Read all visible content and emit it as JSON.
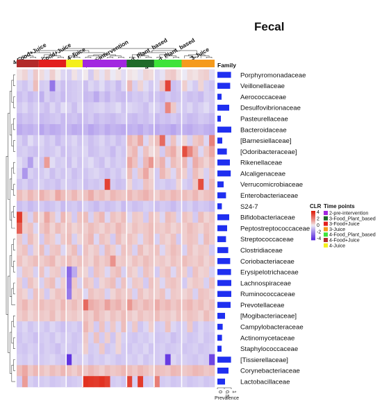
{
  "chart_data": {
    "type": "heatmap",
    "title": "Fecal",
    "column_groups": [
      "4-Food+Juice",
      "3-Food+Juice",
      "4-Juice",
      "2-pre-intervention",
      "3-Food_Plant_based",
      "4-Food_Plant_based",
      "3-Juice"
    ],
    "row_annotation_header": "Family",
    "prevalence_axis": {
      "label": "Prevalence",
      "ticks": [
        "0",
        "0.5",
        "1"
      ]
    },
    "rows": [
      {
        "family": "Porphyromonadaceae",
        "prevalence": 0.98
      },
      {
        "family": "Veillonellaceae",
        "prevalence": 0.92
      },
      {
        "family": "Aerococcaceae",
        "prevalence": 0.3
      },
      {
        "family": "Desulfovibrionaceae",
        "prevalence": 0.85
      },
      {
        "family": "Pasteurellaceae",
        "prevalence": 0.25
      },
      {
        "family": "Bacteroidaceae",
        "prevalence": 1.0
      },
      {
        "family": "[Barnesiellaceae]",
        "prevalence": 0.35
      },
      {
        "family": "[Odoribacteraceae]",
        "prevalence": 0.68
      },
      {
        "family": "Rikenellaceae",
        "prevalence": 0.9
      },
      {
        "family": "Alcaligenaceae",
        "prevalence": 0.96
      },
      {
        "family": "Verrucomicrobiaceae",
        "prevalence": 0.45
      },
      {
        "family": "Enterobacteriaceae",
        "prevalence": 0.62
      },
      {
        "family": "S24-7",
        "prevalence": 0.32
      },
      {
        "family": "Bifidobacteriaceae",
        "prevalence": 0.85
      },
      {
        "family": "Peptostreptococcaceae",
        "prevalence": 0.7
      },
      {
        "family": "Streptococcaceae",
        "prevalence": 0.62
      },
      {
        "family": "Clostridiaceae",
        "prevalence": 0.78
      },
      {
        "family": "Coriobacteriaceae",
        "prevalence": 0.92
      },
      {
        "family": "Erysipelotrichaceae",
        "prevalence": 0.98
      },
      {
        "family": "Lachnospiraceae",
        "prevalence": 1.0
      },
      {
        "family": "Ruminococcaceae",
        "prevalence": 1.0
      },
      {
        "family": "Prevotellaceae",
        "prevalence": 0.95
      },
      {
        "family": "[Mogibacteriaceae]",
        "prevalence": 0.55
      },
      {
        "family": "Campylobacteraceae",
        "prevalence": 0.38
      },
      {
        "family": "Actinomycetaceae",
        "prevalence": 0.33
      },
      {
        "family": "Staphylococcaceae",
        "prevalence": 0.3
      },
      {
        "family": "[Tissierellaceae]",
        "prevalence": 0.98
      },
      {
        "family": "Corynebacteriaceae",
        "prevalence": 0.8
      },
      {
        "family": "Lactobacillaceae",
        "prevalence": 0.55
      }
    ],
    "color_scale": {
      "label": "CLR",
      "ticks": [
        4,
        2,
        0,
        -2,
        -4
      ],
      "low": "#5b2be0",
      "mid": "#f2f2f6",
      "high": "#e0200e"
    },
    "time_points_legend": {
      "title": "Time points",
      "entries": [
        {
          "label": "2-pre-intervention",
          "color": "#a227e0"
        },
        {
          "label": "3-Food_Plant_based",
          "color": "#1f6b2a"
        },
        {
          "label": "3-Food+Juice",
          "color": "#e21e1e"
        },
        {
          "label": "3-Juice",
          "color": "#f59a1c"
        },
        {
          "label": "4-Food_Plant_based",
          "color": "#3ee33a"
        },
        {
          "label": "4-Food+Juice",
          "color": "#b22a2a"
        },
        {
          "label": "4-Juice",
          "color": "#f4ef1c"
        }
      ]
    },
    "column_group_colors": [
      "#b22a2a",
      "#e21e1e",
      "#f4ef1c",
      "#a227e0",
      "#1f6b2a",
      "#3ee33a",
      "#f59a1c"
    ],
    "column_group_sizes": [
      4,
      5,
      3,
      8,
      5,
      5,
      6
    ],
    "values": [
      [
        0.2,
        0.4,
        -0.3,
        0.6,
        0.3,
        -0.2,
        0.5,
        0.1,
        -0.4,
        -0.5,
        0.2,
        -0.3,
        0.1,
        -0.6,
        0.3,
        -0.2,
        0.4,
        -0.1,
        0.2,
        -0.3,
        0.2,
        0.1,
        -0.2,
        0.4,
        0.3,
        -0.4,
        -0.2,
        0.5,
        0.6,
        0.2,
        -0.1,
        0.3,
        0.2,
        0.4,
        0.5,
        -0.3
      ],
      [
        -0.5,
        -0.7,
        -0.4,
        0.8,
        -0.6,
        -0.5,
        -2.3,
        -0.5,
        -0.8,
        -0.7,
        -0.6,
        -0.5,
        -0.8,
        -0.4,
        -0.6,
        -0.3,
        -0.7,
        -0.5,
        -0.9,
        -0.4,
        0.9,
        -0.5,
        0.4,
        -0.3,
        -0.6,
        -0.4,
        0.7,
        3.2,
        -0.8,
        -0.6,
        0.5,
        -0.3,
        -0.6,
        0.4,
        -0.5,
        -0.7
      ],
      [
        -0.8,
        -0.6,
        -0.9,
        -0.7,
        -1.1,
        -0.5,
        -0.8,
        -0.6,
        -0.9,
        -0.7,
        -0.6,
        -0.5,
        -0.9,
        -0.8,
        -1.2,
        -0.7,
        -1.0,
        -0.6,
        -0.8,
        -0.9,
        -0.8,
        -0.6,
        -0.7,
        -0.5,
        -0.8,
        -0.7,
        -0.9,
        -0.6,
        -0.8,
        -0.7,
        -0.6,
        -0.8,
        -0.7,
        -0.9,
        -0.5,
        -0.6
      ],
      [
        -0.6,
        -0.4,
        -0.7,
        -0.5,
        -0.6,
        -0.8,
        -0.4,
        -0.7,
        -0.3,
        -0.5,
        -0.8,
        -0.4,
        -0.7,
        -0.6,
        -0.5,
        -0.4,
        -0.6,
        -0.5,
        -0.3,
        -0.7,
        -0.4,
        -0.5,
        -0.6,
        -0.8,
        -0.4,
        -0.5,
        -0.7,
        1.8,
        0.6,
        -0.5,
        -0.6,
        -0.4,
        -0.7,
        -0.5,
        -0.3,
        -0.6
      ],
      [
        -0.9,
        -0.7,
        -0.8,
        -0.6,
        -0.9,
        -0.8,
        -0.7,
        -0.6,
        -0.9,
        -0.8,
        -0.7,
        -0.9,
        -0.8,
        -0.6,
        -0.9,
        -0.7,
        -0.8,
        -0.9,
        -0.7,
        -0.6,
        -0.8,
        -0.9,
        -0.7,
        -0.8,
        -0.6,
        -0.9,
        -0.7,
        -0.8,
        -0.6,
        -0.8,
        -0.7,
        -0.9,
        -0.8,
        -0.6,
        -0.7,
        -0.9
      ],
      [
        -1.2,
        -1.0,
        -1.1,
        -0.9,
        -1.3,
        -1.0,
        -1.2,
        -1.1,
        -0.9,
        -1.0,
        -1.2,
        -1.1,
        -1.0,
        -1.3,
        -1.1,
        -0.9,
        -1.2,
        -1.0,
        -1.1,
        -1.2,
        -1.1,
        -1.0,
        -1.2,
        -0.9,
        -1.1,
        -1.2,
        -1.0,
        -1.1,
        -1.3,
        -1.0,
        -1.1,
        -1.2,
        -1.0,
        -0.9,
        -1.1,
        -1.2
      ],
      [
        -0.5,
        -0.8,
        -0.3,
        -0.6,
        -0.4,
        -0.7,
        -0.5,
        -0.9,
        -0.6,
        -0.6,
        -0.4,
        -0.7,
        -0.5,
        -0.8,
        -0.6,
        -0.4,
        -0.7,
        -0.5,
        -0.8,
        -0.6,
        0.9,
        0.6,
        1.2,
        -0.4,
        0.5,
        0.8,
        2.4,
        -0.5,
        0.7,
        -0.3,
        0.4,
        -0.5,
        0.6,
        0.8,
        -0.4,
        1.9
      ],
      [
        -0.6,
        -0.5,
        -0.7,
        -0.8,
        -0.5,
        -0.7,
        -0.6,
        -0.4,
        -0.8,
        -0.7,
        -0.5,
        -0.6,
        -0.4,
        -0.8,
        -0.7,
        -0.5,
        -0.6,
        -0.9,
        -0.5,
        -0.7,
        0.6,
        0.9,
        -0.4,
        0.7,
        0.3,
        0.5,
        -0.6,
        0.8,
        1.1,
        0.4,
        3.0,
        1.8,
        0.9,
        -0.4,
        0.6,
        1.2
      ],
      [
        -0.3,
        -0.6,
        -1.4,
        -0.4,
        -0.7,
        1.4,
        -0.3,
        -0.6,
        -0.5,
        -0.8,
        -0.4,
        -0.7,
        -0.5,
        -0.3,
        -0.6,
        -0.8,
        -0.4,
        -0.7,
        -0.5,
        -0.6,
        1.2,
        0.7,
        -0.5,
        0.9,
        1.5,
        0.6,
        1.0,
        -0.4,
        0.8,
        0.5,
        0.9,
        -0.5,
        1.1,
        0.7,
        0.4,
        0.8
      ],
      [
        -0.4,
        -1.6,
        -0.5,
        -0.7,
        -0.6,
        -0.4,
        -0.8,
        -0.5,
        -0.7,
        -0.5,
        -0.8,
        -0.6,
        -0.7,
        -0.5,
        -0.4,
        -0.6,
        -0.8,
        -0.5,
        -0.7,
        -0.4,
        0.8,
        -0.5,
        0.6,
        1.2,
        0.4,
        -0.6,
        0.9,
        0.5,
        -0.4,
        0.7,
        0.5,
        -0.6,
        0.8,
        0.4,
        -0.5,
        0.6
      ],
      [
        -0.7,
        -0.5,
        -0.8,
        -0.6,
        -0.5,
        -0.7,
        -0.6,
        -0.8,
        -0.5,
        -0.6,
        -0.7,
        -0.5,
        -0.8,
        -0.6,
        -0.7,
        -0.5,
        3.2,
        -0.6,
        -0.8,
        -0.7,
        0.4,
        -0.6,
        -0.5,
        0.7,
        0.5,
        -0.6,
        -0.5,
        -0.7,
        -0.6,
        0.4,
        -0.5,
        -0.7,
        0.6,
        3.0,
        -0.5,
        0.9
      ],
      [
        0.8,
        0.5,
        0.9,
        0.6,
        1.0,
        0.7,
        0.5,
        1.2,
        0.8,
        0.6,
        0.9,
        0.5,
        0.7,
        1.1,
        0.6,
        0.8,
        0.5,
        0.9,
        0.7,
        0.6,
        0.9,
        0.6,
        0.8,
        1.0,
        0.7,
        0.5,
        0.8,
        0.6,
        0.9,
        0.7,
        0.8,
        0.6,
        0.9,
        0.5,
        0.7,
        0.8
      ],
      [
        -0.8,
        -0.6,
        -0.9,
        -0.7,
        -0.6,
        -0.8,
        -0.7,
        -0.5,
        -0.9,
        -0.7,
        -0.6,
        -0.8,
        -0.5,
        -0.7,
        -0.9,
        -0.6,
        -0.8,
        -0.7,
        -0.5,
        -0.9,
        -0.6,
        -0.8,
        -0.7,
        -0.5,
        -0.6,
        -0.8,
        -0.6,
        -0.7,
        -0.9,
        -0.6,
        -0.7,
        -0.5,
        -0.8,
        -0.6,
        -0.7,
        -0.9
      ],
      [
        3.4,
        0.6,
        -0.5,
        0.8,
        0.4,
        1.2,
        0.6,
        -0.4,
        0.9,
        0.5,
        -0.6,
        0.7,
        0.8,
        -0.5,
        0.6,
        0.9,
        -0.4,
        0.7,
        0.5,
        0.8,
        -0.4,
        0.6,
        0.5,
        -0.6,
        0.7,
        0.5,
        -0.4,
        0.8,
        0.6,
        -0.5,
        0.7,
        0.5,
        -0.6,
        0.8,
        0.4,
        0.6
      ],
      [
        2.6,
        0.5,
        0.7,
        -0.4,
        0.6,
        0.9,
        0.4,
        0.8,
        0.5,
        0.7,
        0.4,
        0.6,
        0.5,
        0.8,
        0.6,
        0.4,
        0.7,
        0.5,
        0.9,
        0.6,
        0.4,
        0.7,
        0.5,
        0.6,
        0.8,
        0.6,
        0.5,
        0.7,
        0.4,
        0.6,
        0.5,
        0.8,
        0.6,
        0.4,
        0.7,
        0.5
      ],
      [
        0.6,
        -0.5,
        0.8,
        0.4,
        -0.6,
        0.7,
        0.5,
        -0.4,
        0.6,
        0.8,
        -0.5,
        0.4,
        0.6,
        0.9,
        -0.4,
        0.7,
        0.5,
        -0.6,
        0.8,
        0.4,
        0.7,
        0.5,
        -0.4,
        0.6,
        0.8,
        -0.5,
        0.6,
        0.4,
        0.7,
        -0.6,
        0.5,
        0.7,
        0.6,
        -0.4,
        0.8,
        0.5
      ],
      [
        0.5,
        0.7,
        -0.6,
        0.4,
        0.8,
        -0.5,
        0.6,
        0.7,
        -0.4,
        0.5,
        0.8,
        -0.6,
        0.7,
        0.4,
        0.6,
        -0.5,
        0.8,
        0.5,
        -0.4,
        0.7,
        0.6,
        -0.5,
        0.8,
        0.4,
        0.6,
        0.7,
        -0.4,
        0.5,
        0.8,
        0.6,
        -0.5,
        0.7,
        0.4,
        0.6,
        0.5,
        -0.6
      ],
      [
        0.7,
        0.4,
        0.6,
        0.8,
        0.5,
        0.7,
        0.9,
        0.4,
        0.6,
        0.8,
        0.5,
        0.7,
        0.6,
        0.4,
        0.8,
        0.5,
        0.7,
        1.6,
        0.5,
        0.6,
        0.4,
        0.7,
        0.5,
        0.8,
        0.6,
        0.5,
        0.6,
        0.4,
        0.7,
        0.5,
        0.8,
        0.6,
        0.5,
        0.7,
        0.4,
        0.6
      ],
      [
        -0.4,
        0.6,
        0.5,
        -0.5,
        0.7,
        -0.4,
        0.5,
        0.6,
        -0.6,
        -2.6,
        -1.2,
        0.5,
        0.4,
        -0.6,
        0.7,
        0.5,
        -0.4,
        0.6,
        0.8,
        -0.5,
        0.6,
        0.4,
        -0.5,
        0.7,
        0.5,
        -0.6,
        0.5,
        0.7,
        -0.4,
        0.6,
        0.5,
        -0.6,
        0.7,
        0.4,
        0.5,
        -0.5
      ],
      [
        0.5,
        -0.6,
        0.7,
        0.4,
        -0.5,
        0.6,
        0.8,
        -0.4,
        0.5,
        -2.4,
        0.6,
        -0.5,
        0.7,
        0.5,
        -0.6,
        0.4,
        0.6,
        0.8,
        -0.5,
        0.7,
        -0.4,
        0.6,
        0.5,
        -0.6,
        0.7,
        0.5,
        -0.4,
        0.6,
        0.7,
        0.5,
        -0.6,
        0.4,
        0.6,
        0.5,
        -0.5,
        0.7
      ],
      [
        0.6,
        0.4,
        -0.5,
        0.7,
        0.5,
        -0.6,
        0.4,
        0.7,
        0.6,
        -2.2,
        0.5,
        0.6,
        -0.4,
        0.7,
        0.5,
        0.6,
        -0.5,
        0.4,
        0.7,
        0.5,
        0.6,
        -0.5,
        0.7,
        0.4,
        0.6,
        0.5,
        0.7,
        -0.4,
        0.6,
        0.5,
        0.4,
        0.6,
        -0.5,
        0.7,
        0.6,
        0.4
      ],
      [
        0.6,
        0.9,
        0.5,
        0.7,
        0.8,
        0.6,
        0.7,
        0.5,
        0.9,
        0.6,
        0.8,
        0.5,
        2.4,
        1.1,
        0.9,
        0.7,
        1.3,
        0.8,
        1.0,
        0.6,
        1.5,
        0.8,
        0.6,
        0.9,
        0.7,
        1.1,
        0.7,
        0.9,
        0.6,
        0.8,
        0.7,
        0.9,
        0.6,
        0.8,
        0.5,
        0.7
      ],
      [
        0.5,
        0.7,
        0.4,
        0.6,
        0.6,
        0.5,
        0.8,
        0.4,
        0.7,
        0.5,
        0.6,
        0.4,
        0.7,
        0.5,
        0.9,
        0.6,
        0.4,
        0.7,
        0.5,
        0.8,
        0.6,
        0.4,
        0.7,
        0.5,
        0.6,
        0.8,
        0.5,
        0.6,
        0.4,
        0.7,
        0.5,
        0.7,
        0.6,
        0.4,
        0.8,
        0.5
      ],
      [
        -0.6,
        -0.4,
        -0.7,
        -0.5,
        -0.5,
        -0.7,
        -0.4,
        -0.6,
        -0.8,
        -0.6,
        -0.5,
        -0.7,
        0.9,
        0.5,
        -0.6,
        0.7,
        -0.5,
        0.6,
        -0.4,
        0.8,
        -0.5,
        0.6,
        -0.7,
        -0.4,
        0.5,
        -0.6,
        -0.5,
        0.7,
        -0.4,
        -0.6,
        -0.5,
        0.6,
        -0.7,
        -0.4,
        -0.6,
        -0.5
      ],
      [
        -0.7,
        -0.5,
        -0.6,
        -0.8,
        -0.6,
        -0.5,
        -0.7,
        -0.4,
        -0.6,
        -0.5,
        -0.7,
        -0.6,
        0.6,
        -0.5,
        0.7,
        -0.6,
        0.5,
        -0.7,
        0.4,
        -0.5,
        -0.6,
        -0.7,
        -0.5,
        -0.6,
        -0.4,
        -0.7,
        -0.6,
        -0.5,
        -0.8,
        -0.6,
        -0.5,
        -0.7,
        -0.6,
        -0.4,
        -0.7,
        -0.6
      ],
      [
        -0.6,
        -0.7,
        -0.5,
        -0.6,
        -0.7,
        -0.5,
        -0.6,
        -0.8,
        -0.5,
        -0.6,
        -0.7,
        -0.5,
        0.5,
        -0.6,
        -0.5,
        0.6,
        -0.7,
        -0.5,
        0.4,
        -0.6,
        -0.7,
        -0.5,
        -0.6,
        -0.4,
        -0.7,
        -0.6,
        -0.5,
        -0.7,
        -0.6,
        -0.5,
        -0.7,
        -0.6,
        -0.5,
        -0.7,
        -0.6,
        -0.5
      ],
      [
        -0.5,
        -0.6,
        -0.4,
        -0.7,
        -0.6,
        -0.5,
        -0.4,
        -0.6,
        -0.7,
        -3.8,
        -0.5,
        -0.6,
        -0.4,
        -0.7,
        -0.5,
        -0.6,
        -0.4,
        -0.5,
        -0.7,
        -0.6,
        -0.5,
        -0.6,
        -0.4,
        -0.7,
        -0.5,
        -0.6,
        -0.5,
        -3.6,
        -0.4,
        -0.6,
        -0.5,
        -0.6,
        -0.7,
        -0.5,
        -0.6,
        -3.4
      ],
      [
        0.8,
        1.2,
        0.6,
        0.9,
        0.7,
        0.5,
        0.8,
        0.6,
        0.9,
        0.7,
        0.5,
        0.8,
        0.6,
        0.9,
        0.7,
        0.5,
        0.8,
        0.6,
        0.7,
        0.9,
        0.8,
        0.6,
        0.9,
        0.7,
        0.5,
        0.8,
        0.7,
        0.6,
        0.9,
        0.8,
        0.6,
        0.7,
        0.9,
        0.8,
        0.6,
        0.7
      ],
      [
        -0.6,
        1.4,
        -0.5,
        -0.7,
        -0.6,
        -0.5,
        -0.7,
        -0.6,
        -0.5,
        -0.7,
        -0.6,
        -0.5,
        3.6,
        3.5,
        3.4,
        3.6,
        3.3,
        -0.6,
        -0.5,
        -0.7,
        3.2,
        -0.5,
        3.4,
        -0.6,
        -0.5,
        2.0,
        -0.6,
        -0.5,
        -0.7,
        -0.6,
        -0.5,
        -0.7,
        -0.6,
        -0.5,
        -0.7,
        -0.6
      ]
    ]
  }
}
